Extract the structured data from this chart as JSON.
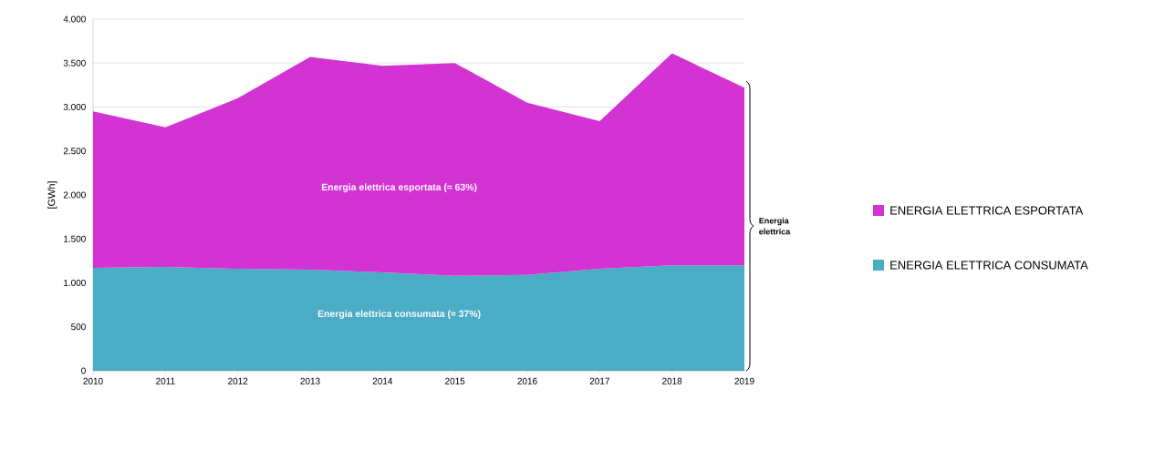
{
  "chart_data": {
    "type": "area",
    "stacked": true,
    "ylabel": "[GWh]",
    "x": [
      2010,
      2011,
      2012,
      2013,
      2014,
      2015,
      2016,
      2017,
      2018,
      2019
    ],
    "series": [
      {
        "name": "ENERGIA ELETTRICA CONSUMATA",
        "color": "#4bacc6",
        "values": [
          1170,
          1180,
          1160,
          1150,
          1120,
          1080,
          1090,
          1160,
          1200,
          1200
        ]
      },
      {
        "name": "ENERGIA ELETTRICA ESPORTATA",
        "color": "#d333d3",
        "values": [
          1780,
          1590,
          1940,
          2420,
          2350,
          2420,
          1960,
          1680,
          2410,
          2020
        ]
      }
    ],
    "xlim": [
      2010,
      2019
    ],
    "xticks": [
      2010,
      2011,
      2012,
      2013,
      2014,
      2015,
      2016,
      2017,
      2018,
      2019
    ],
    "ylim": [
      0,
      4000
    ],
    "yticks": [
      0,
      500,
      {
        "value": 1000,
        "label": "1.000"
      },
      {
        "value": 1500,
        "label": "1.500"
      },
      {
        "value": 2000,
        "label": "2.000"
      },
      {
        "value": 2500,
        "label": "2.500"
      },
      {
        "value": 3000,
        "label": "3.000"
      },
      {
        "value": 3500,
        "label": "3.500"
      },
      {
        "value": 4000,
        "label": "4.000"
      }
    ],
    "grid": "y",
    "legend": "right",
    "annotations": [
      "Energia elettrica  esportata (≈ 63%)",
      "Energia elettrica  consumata (≈ 37%)",
      "Energia elettrica"
    ]
  }
}
